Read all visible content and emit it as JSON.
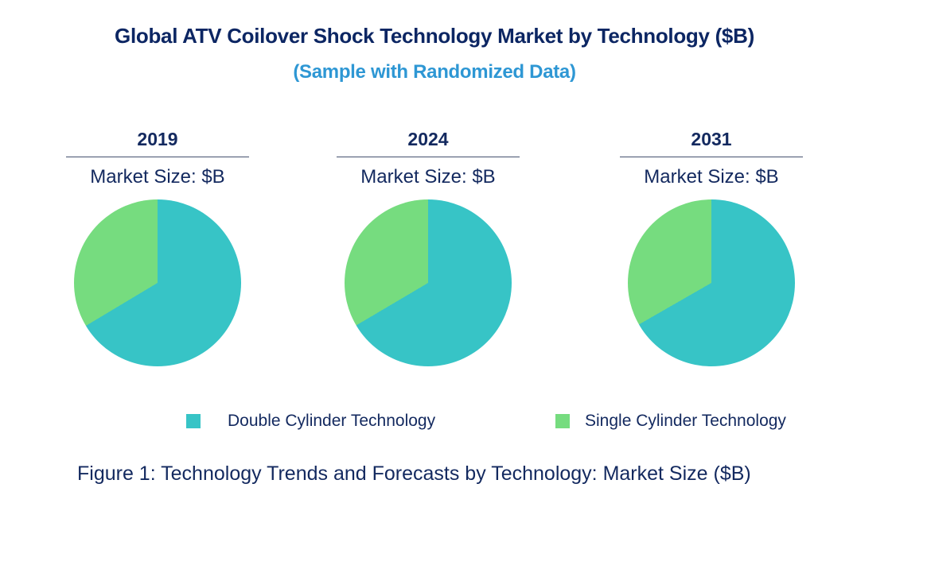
{
  "header": {
    "title": "Global ATV Coilover Shock Technology Market by Technology ($B)",
    "subtitle": "(Sample with Randomized Data)",
    "title_color": "#0C2663",
    "subtitle_color": "#2E97D4"
  },
  "colors": {
    "double_cylinder_teal": "#37C4C6",
    "single_cylinder_green": "#76DC7F",
    "text_navy": "#13295F",
    "year_underline": "#44506E"
  },
  "legend": {
    "items": [
      {
        "label": "Double Cylinder Technology",
        "color": "#37C4C6"
      },
      {
        "label": "Single Cylinder Technology",
        "color": "#76DC7F"
      }
    ]
  },
  "caption": "Figure 1: Technology Trends and Forecasts by Technology: Market Size ($B)",
  "chart_data": [
    {
      "type": "pie",
      "title": "2019",
      "value_label": "Market Size: $B",
      "labels": [
        "Double Cylinder Technology",
        "Single Cylinder Technology"
      ],
      "values": [
        66.4,
        33.6
      ],
      "unit": "percent share",
      "colors": [
        "#37C4C6",
        "#76DC7F"
      ],
      "start_angle_deg": 0,
      "direction": "clockwise",
      "legend_position": "bottom"
    },
    {
      "type": "pie",
      "title": "2024",
      "value_label": "Market Size: $B",
      "labels": [
        "Double Cylinder Technology",
        "Single Cylinder Technology"
      ],
      "values": [
        66.5,
        33.5
      ],
      "unit": "percent share",
      "colors": [
        "#37C4C6",
        "#76DC7F"
      ],
      "start_angle_deg": 0,
      "direction": "clockwise",
      "legend_position": "bottom"
    },
    {
      "type": "pie",
      "title": "2031",
      "value_label": "Market Size: $B",
      "labels": [
        "Double Cylinder Technology",
        "Single Cylinder Technology"
      ],
      "values": [
        66.7,
        33.3
      ],
      "unit": "percent share",
      "colors": [
        "#37C4C6",
        "#76DC7F"
      ],
      "start_angle_deg": 0,
      "direction": "clockwise",
      "legend_position": "bottom"
    }
  ]
}
